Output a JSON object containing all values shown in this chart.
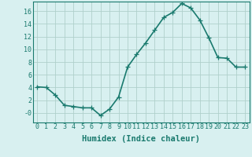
{
  "x": [
    0,
    1,
    2,
    3,
    4,
    5,
    6,
    7,
    8,
    9,
    10,
    11,
    12,
    13,
    14,
    15,
    16,
    17,
    18,
    19,
    20,
    21,
    22,
    23
  ],
  "y": [
    4.1,
    4.0,
    2.8,
    1.2,
    1.0,
    0.8,
    0.8,
    -0.4,
    0.6,
    2.5,
    7.2,
    9.2,
    11.0,
    13.0,
    15.0,
    15.8,
    17.2,
    16.5,
    14.6,
    11.8,
    8.7,
    8.6,
    7.2,
    7.2
  ],
  "line_color": "#1a7a6e",
  "marker": "+",
  "marker_size": 4,
  "line_width": 1.2,
  "background_color": "#d8f0f0",
  "grid_color": "#b0d0cc",
  "xlabel": "Humidex (Indice chaleur)",
  "xlabel_fontsize": 7.5,
  "tick_fontsize": 6,
  "xlim": [
    -0.5,
    23.5
  ],
  "ylim": [
    -1.5,
    17.5
  ],
  "yticks": [
    0,
    2,
    4,
    6,
    8,
    10,
    12,
    14,
    16
  ],
  "ytick_labels": [
    "-0",
    "2",
    "4",
    "6",
    "8",
    "10",
    "12",
    "14",
    "16"
  ],
  "xtick_labels": [
    "0",
    "1",
    "2",
    "3",
    "4",
    "5",
    "6",
    "7",
    "8",
    "9",
    "10",
    "11",
    "12",
    "13",
    "14",
    "15",
    "16",
    "17",
    "18",
    "19",
    "20",
    "21",
    "22",
    "23"
  ]
}
